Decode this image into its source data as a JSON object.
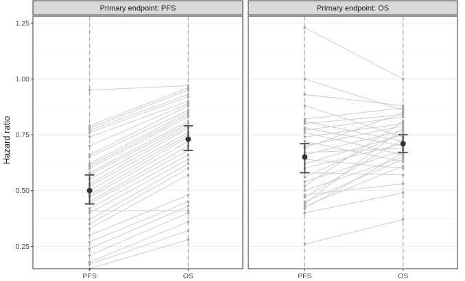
{
  "chart_data": {
    "type": "line",
    "ylabel": "Hazard ratio",
    "categories": [
      "PFS",
      "OS"
    ],
    "ylim": [
      0.15,
      1.28
    ],
    "yticks": [
      0.25,
      0.5,
      0.75,
      1.0,
      1.25
    ],
    "ytick_labels": [
      "0.25",
      "0.50",
      "0.75",
      "1.00",
      "1.25"
    ],
    "grid": true,
    "colors": {
      "trial_line": "#cccccc",
      "trial_point": "#a6a6a6",
      "summary": "#333333",
      "errorbar": "#555555",
      "vline": "#aaaaaa",
      "strip_fill": "#d9d9d9",
      "strip_border": "#333333",
      "grid_major": "#ebebeb",
      "grid_minor": "#f5f5f5"
    },
    "panels": [
      {
        "title": "Primary endpoint: PFS",
        "summary": {
          "PFS": {
            "estimate": 0.5,
            "lower": 0.44,
            "upper": 0.57
          },
          "OS": {
            "estimate": 0.73,
            "lower": 0.68,
            "upper": 0.79
          }
        },
        "trials": [
          [
            0.95,
            0.97
          ],
          [
            0.79,
            0.96
          ],
          [
            0.78,
            0.95
          ],
          [
            0.77,
            0.93
          ],
          [
            0.76,
            0.92
          ],
          [
            0.74,
            0.9
          ],
          [
            0.7,
            0.89
          ],
          [
            0.66,
            0.88
          ],
          [
            0.65,
            0.86
          ],
          [
            0.62,
            0.85
          ],
          [
            0.61,
            0.84
          ],
          [
            0.6,
            0.83
          ],
          [
            0.58,
            0.81
          ],
          [
            0.57,
            0.8
          ],
          [
            0.55,
            0.79
          ],
          [
            0.53,
            0.78
          ],
          [
            0.52,
            0.76
          ],
          [
            0.5,
            0.75
          ],
          [
            0.48,
            0.74
          ],
          [
            0.47,
            0.72
          ],
          [
            0.45,
            0.7
          ],
          [
            0.44,
            0.68
          ],
          [
            0.42,
            0.66
          ],
          [
            0.41,
            0.41
          ],
          [
            0.4,
            0.64
          ],
          [
            0.37,
            0.62
          ],
          [
            0.35,
            0.6
          ],
          [
            0.33,
            0.57
          ],
          [
            0.3,
            0.48
          ],
          [
            0.27,
            0.45
          ],
          [
            0.24,
            0.43
          ],
          [
            0.21,
            0.4
          ],
          [
            0.18,
            0.36
          ],
          [
            0.17,
            0.32
          ],
          [
            0.15,
            0.28
          ]
        ]
      },
      {
        "title": "Primary endpoint: OS",
        "summary": {
          "PFS": {
            "estimate": 0.65,
            "lower": 0.58,
            "upper": 0.71
          },
          "OS": {
            "estimate": 0.71,
            "lower": 0.67,
            "upper": 0.75
          }
        },
        "trials": [
          [
            1.23,
            1.0
          ],
          [
            1.0,
            0.86
          ],
          [
            0.93,
            0.88
          ],
          [
            0.88,
            0.74
          ],
          [
            0.82,
            0.87
          ],
          [
            0.81,
            0.72
          ],
          [
            0.8,
            0.84
          ],
          [
            0.78,
            0.7
          ],
          [
            0.77,
            0.83
          ],
          [
            0.76,
            0.66
          ],
          [
            0.74,
            0.8
          ],
          [
            0.72,
            0.63
          ],
          [
            0.7,
            0.79
          ],
          [
            0.69,
            0.85
          ],
          [
            0.67,
            0.69
          ],
          [
            0.66,
            0.77
          ],
          [
            0.64,
            0.6
          ],
          [
            0.62,
            0.75
          ],
          [
            0.6,
            0.71
          ],
          [
            0.58,
            0.57
          ],
          [
            0.56,
            0.76
          ],
          [
            0.54,
            0.68
          ],
          [
            0.52,
            0.81
          ],
          [
            0.5,
            0.65
          ],
          [
            0.48,
            0.53
          ],
          [
            0.47,
            0.73
          ],
          [
            0.45,
            0.64
          ],
          [
            0.44,
            0.78
          ],
          [
            0.43,
            0.61
          ],
          [
            0.42,
            0.67
          ],
          [
            0.4,
            0.49
          ],
          [
            0.26,
            0.37
          ]
        ]
      }
    ]
  }
}
